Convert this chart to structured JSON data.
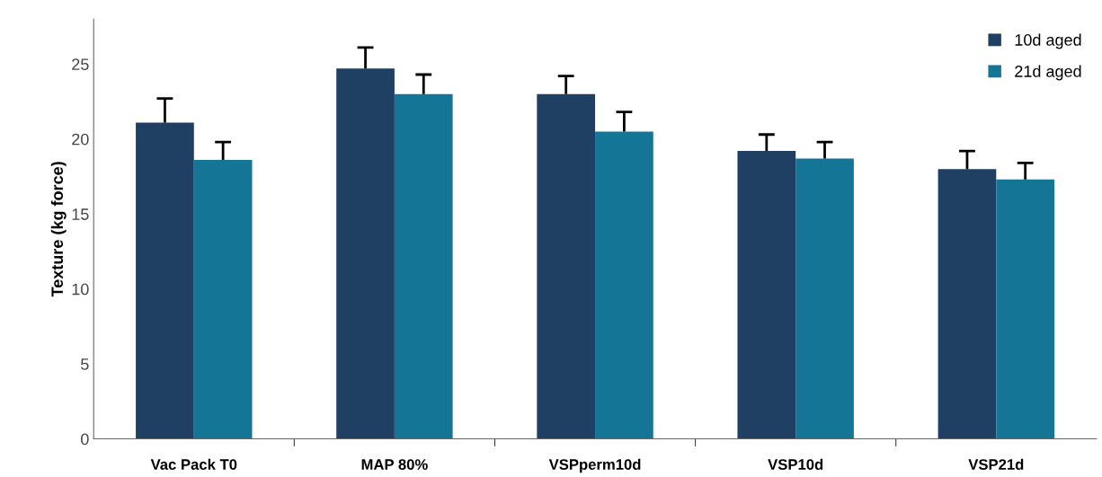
{
  "chart_data": {
    "type": "bar",
    "ylabel": "Texture (kg force)",
    "categories": [
      "Vac Pack T0",
      "MAP 80%",
      "VSPperm10d",
      "VSP10d",
      "VSP21d"
    ],
    "series": [
      {
        "name": "10d aged",
        "color": "#1f3f63",
        "values": [
          21.1,
          24.7,
          23.0,
          19.2,
          18.0
        ],
        "errors": [
          [
            21.1,
            22.7
          ],
          [
            24.7,
            26.1
          ],
          [
            23.0,
            24.2
          ],
          [
            19.2,
            20.3
          ],
          [
            18.0,
            19.2
          ]
        ]
      },
      {
        "name": "21d aged",
        "color": "#157596",
        "values": [
          18.6,
          23.0,
          20.5,
          18.7,
          17.3
        ],
        "errors": [
          [
            18.6,
            19.8
          ],
          [
            23.0,
            24.3
          ],
          [
            20.5,
            21.8
          ],
          [
            18.7,
            19.8
          ],
          [
            17.3,
            18.4
          ]
        ]
      }
    ],
    "ylim": [
      0,
      28
    ],
    "yticks": [
      0,
      5,
      10,
      15,
      20,
      25
    ],
    "grid": false,
    "legend": "top right"
  }
}
